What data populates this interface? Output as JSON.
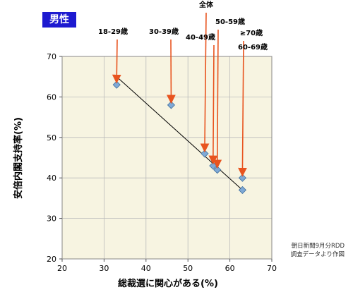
{
  "badge": "男性",
  "source_note": [
    "朝日新聞9月分RDD",
    "調査データより作図"
  ],
  "chart_data": {
    "type": "scatter",
    "xlabel": "総裁選に関心がある(%)",
    "ylabel": "安倍内閣支持率(%)",
    "xlim": [
      20,
      70
    ],
    "ylim": [
      20,
      70
    ],
    "xticks": [
      20,
      30,
      40,
      50,
      60,
      70
    ],
    "yticks": [
      20,
      30,
      40,
      50,
      60,
      70
    ],
    "grid": true,
    "points": [
      {
        "label": "18-29歳",
        "x": 33,
        "y": 63
      },
      {
        "label": "30-39歳",
        "x": 46,
        "y": 58
      },
      {
        "label": "40-49歳",
        "x": 56,
        "y": 43
      },
      {
        "label": "全体",
        "x": 54,
        "y": 46
      },
      {
        "label": "50-59歳",
        "x": 57,
        "y": 42
      },
      {
        "label": "≥70歳",
        "x": 63,
        "y": 40
      },
      {
        "label": "60-69歳",
        "x": 63,
        "y": 37
      }
    ],
    "trendline": {
      "x": [
        33,
        63
      ],
      "y": [
        65,
        37
      ]
    },
    "colors": {
      "point": "#7fa9d6",
      "point_stroke": "#3e6e9e",
      "arrow": "#e8541f",
      "plot_bg": "#f7f4e1",
      "badge_bg": "#1d1ad0"
    }
  }
}
